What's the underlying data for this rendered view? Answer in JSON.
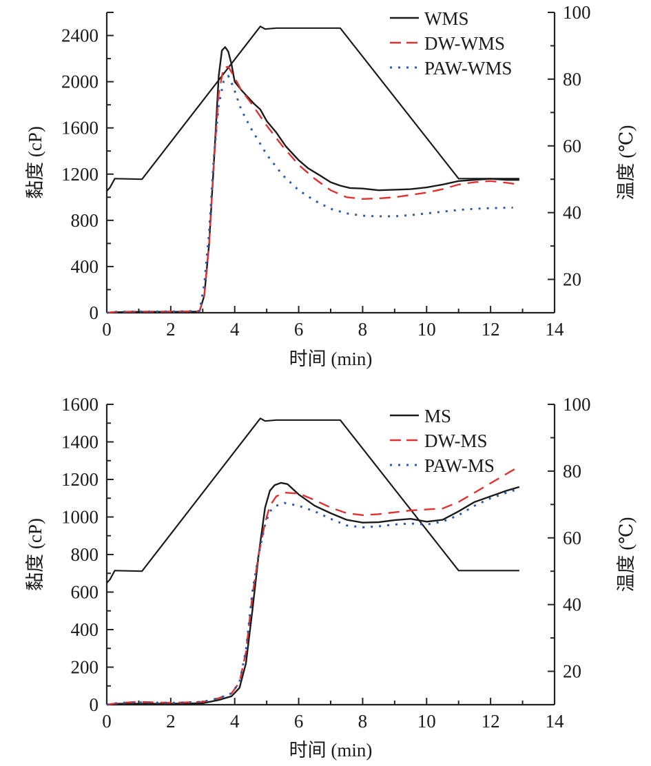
{
  "chart_data": [
    {
      "type": "line",
      "title": "",
      "xlabel": "时间 (min)",
      "ylabel": "黏度 (cP)",
      "y2label": "温度 (℃)",
      "xlim": [
        0,
        14
      ],
      "ylim": [
        0,
        2600
      ],
      "y2lim": [
        10,
        100
      ],
      "xticks": [
        0,
        2,
        4,
        6,
        8,
        10,
        12,
        14
      ],
      "yticks": [
        0,
        400,
        800,
        1200,
        1600,
        2000,
        2400
      ],
      "y2ticks": [
        20,
        40,
        60,
        80,
        100
      ],
      "grid": false,
      "legend_position": "top-right",
      "series": [
        {
          "name": "WMS",
          "style": "solid",
          "color": "#1a1a1a",
          "x": [
            0,
            0.3,
            1,
            2,
            2.9,
            3.05,
            3.2,
            3.35,
            3.5,
            3.6,
            3.7,
            3.8,
            3.9,
            4.0,
            4.2,
            4.4,
            4.6,
            4.8,
            5.0,
            5.3,
            5.6,
            6.0,
            6.3,
            6.6,
            7.0,
            7.3,
            7.6,
            8.0,
            8.5,
            9.0,
            9.5,
            10.0,
            10.5,
            11.0,
            11.5,
            12.0,
            12.5,
            12.9
          ],
          "y": [
            0,
            5,
            8,
            8,
            10,
            150,
            600,
            1300,
            2050,
            2270,
            2300,
            2260,
            2150,
            2000,
            1930,
            1870,
            1810,
            1760,
            1660,
            1560,
            1440,
            1320,
            1250,
            1200,
            1130,
            1100,
            1080,
            1075,
            1060,
            1065,
            1070,
            1085,
            1110,
            1140,
            1150,
            1160,
            1150,
            1150
          ]
        },
        {
          "name": "DW-WMS",
          "style": "dashed",
          "color": "#e03030",
          "x": [
            0,
            0.3,
            1,
            2,
            2.9,
            3.05,
            3.2,
            3.35,
            3.5,
            3.65,
            3.8,
            3.95,
            4.2,
            4.5,
            5.0,
            5.5,
            6.0,
            6.5,
            7.0,
            7.5,
            8.0,
            8.5,
            9.0,
            9.5,
            10.0,
            10.5,
            11.0,
            11.5,
            12.0,
            12.5,
            12.9
          ],
          "y": [
            0,
            8,
            10,
            10,
            12,
            150,
            600,
            1300,
            1900,
            2120,
            2130,
            2060,
            1930,
            1820,
            1620,
            1440,
            1280,
            1160,
            1060,
            1000,
            985,
            990,
            1000,
            1020,
            1040,
            1070,
            1110,
            1130,
            1140,
            1125,
            1110
          ]
        },
        {
          "name": "PAW-WMS",
          "style": "dotted",
          "color": "#2f5aa8",
          "x": [
            0,
            0.3,
            1,
            2,
            2.9,
            3.05,
            3.2,
            3.35,
            3.5,
            3.65,
            3.8,
            3.95,
            4.2,
            4.5,
            5.0,
            5.5,
            6.0,
            6.5,
            7.0,
            7.5,
            8.0,
            8.5,
            9.0,
            9.5,
            10.0,
            10.5,
            11.0,
            11.5,
            12.0,
            12.7
          ],
          "y": [
            0,
            8,
            10,
            10,
            15,
            250,
            700,
            1350,
            1800,
            2000,
            2050,
            1960,
            1760,
            1600,
            1370,
            1190,
            1060,
            970,
            900,
            860,
            840,
            835,
            835,
            845,
            860,
            875,
            890,
            900,
            905,
            910
          ]
        }
      ],
      "temperature": {
        "name": "温度",
        "style": "solid",
        "color": "#1a1a1a",
        "x": [
          0,
          0.1,
          0.25,
          1.1,
          4.8,
          4.95,
          5.3,
          7.3,
          11.0,
          12.9
        ],
        "y": [
          46.5,
          47.5,
          50.2,
          50.0,
          95.8,
          95.0,
          95.3,
          95.3,
          50.2,
          50.2
        ]
      }
    },
    {
      "type": "line",
      "title": "",
      "xlabel": "时间 (min)",
      "ylabel": "黏度 (cP)",
      "y2label": "温度 (℃)",
      "xlim": [
        0,
        14
      ],
      "ylim": [
        0,
        1600
      ],
      "y2lim": [
        10,
        100
      ],
      "xticks": [
        0,
        2,
        4,
        6,
        8,
        10,
        12,
        14
      ],
      "yticks": [
        0,
        200,
        400,
        600,
        800,
        1000,
        1200,
        1400,
        1600
      ],
      "y2ticks": [
        20,
        40,
        60,
        80,
        100
      ],
      "grid": false,
      "legend_position": "top-right",
      "series": [
        {
          "name": "MS",
          "style": "solid",
          "color": "#1a1a1a",
          "x": [
            0,
            0.4,
            1,
            2,
            3.0,
            3.5,
            3.9,
            4.15,
            4.35,
            4.55,
            4.75,
            4.95,
            5.1,
            5.25,
            5.45,
            5.65,
            6.0,
            6.5,
            7.0,
            7.5,
            8.0,
            8.5,
            9.0,
            9.5,
            10.0,
            10.5,
            11.0,
            11.5,
            12.0,
            12.5,
            12.9
          ],
          "y": [
            0,
            5,
            5,
            5,
            8,
            25,
            45,
            90,
            220,
            500,
            800,
            1050,
            1140,
            1170,
            1182,
            1175,
            1120,
            1060,
            1020,
            985,
            970,
            972,
            983,
            990,
            975,
            985,
            1030,
            1080,
            1110,
            1140,
            1160
          ]
        },
        {
          "name": "DW-MS",
          "style": "dashed",
          "color": "#e03030",
          "x": [
            0,
            0.4,
            1,
            2,
            3.0,
            3.5,
            3.9,
            4.15,
            4.35,
            4.55,
            4.75,
            4.95,
            5.1,
            5.3,
            5.55,
            6.0,
            6.5,
            7.0,
            7.5,
            8.0,
            8.5,
            9.0,
            9.5,
            10.0,
            10.5,
            11.0,
            11.5,
            12.0,
            12.5,
            12.8
          ],
          "y": [
            0,
            10,
            15,
            10,
            15,
            35,
            60,
            120,
            280,
            580,
            800,
            970,
            1060,
            1110,
            1130,
            1125,
            1090,
            1050,
            1020,
            1010,
            1015,
            1025,
            1035,
            1040,
            1045,
            1080,
            1130,
            1180,
            1230,
            1260
          ]
        },
        {
          "name": "PAW-MS",
          "style": "dotted",
          "color": "#2f5aa8",
          "x": [
            0,
            0.4,
            1,
            2,
            3.0,
            3.5,
            3.9,
            4.15,
            4.35,
            4.55,
            4.75,
            4.95,
            5.1,
            5.3,
            5.55,
            6.0,
            6.5,
            7.0,
            7.5,
            8.0,
            8.5,
            9.0,
            9.5,
            10.0,
            10.5,
            11.0,
            11.5,
            12.0,
            12.5,
            12.9
          ],
          "y": [
            0,
            10,
            12,
            10,
            15,
            35,
            60,
            120,
            290,
            600,
            800,
            960,
            1030,
            1060,
            1075,
            1060,
            1030,
            990,
            955,
            945,
            950,
            960,
            965,
            960,
            975,
            1010,
            1060,
            1100,
            1130,
            1150
          ]
        }
      ],
      "temperature": {
        "name": "温度",
        "style": "solid",
        "color": "#1a1a1a",
        "x": [
          0,
          0.1,
          0.25,
          1.1,
          4.8,
          4.95,
          5.3,
          7.3,
          11.0,
          12.9
        ],
        "y": [
          46.5,
          47.5,
          50.2,
          50.0,
          95.8,
          95.0,
          95.3,
          95.3,
          50.2,
          50.2
        ]
      }
    }
  ]
}
